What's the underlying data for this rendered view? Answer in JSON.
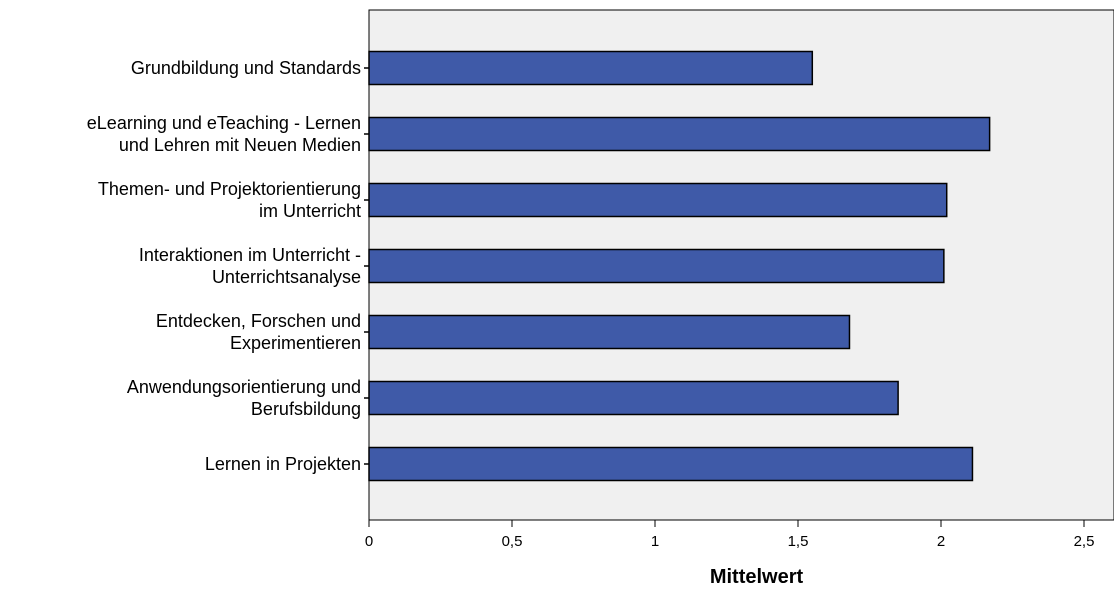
{
  "chart_data": {
    "type": "bar",
    "orientation": "horizontal",
    "categories": [
      [
        "Grundbildung und Standards"
      ],
      [
        "eLearning und eTeaching - Lernen",
        "und Lehren mit Neuen Medien"
      ],
      [
        "Themen- und Projektorientierung",
        "im Unterricht"
      ],
      [
        "Interaktionen im Unterricht -",
        "Unterrichtsanalyse"
      ],
      [
        "Entdecken, Forschen und",
        "Experimentieren"
      ],
      [
        "Anwendungsorientierung und",
        "Berufsbildung"
      ],
      [
        "Lernen in Projekten"
      ]
    ],
    "values": [
      1.55,
      2.17,
      2.02,
      2.01,
      1.68,
      1.85,
      2.11
    ],
    "xlabel": "Mittelwert",
    "ylabel": "",
    "xlim": [
      0,
      2.6
    ],
    "xticks": [
      0,
      0.5,
      1,
      1.5,
      2,
      2.5
    ],
    "xtick_labels": [
      "0",
      "0,5",
      "1",
      "1,5",
      "2",
      "2,5"
    ],
    "grid": false,
    "colors": {
      "bar_fill": "#3f5aa8",
      "bar_stroke": "#000000",
      "plot_background": "#f0f0f0",
      "axis": "#000000"
    }
  }
}
